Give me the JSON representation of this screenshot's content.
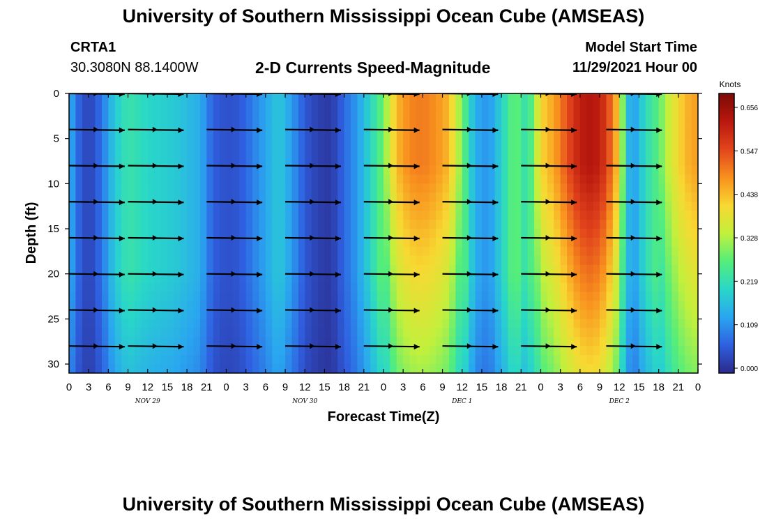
{
  "header": {
    "title": "University of Southern Mississippi Ocean Cube (AMSEAS)",
    "station": "CRTA1",
    "coordinates": "30.3080N  88.1400W",
    "subtitle": "2-D Currents Speed-Magnitude",
    "model_start_label": "Model Start Time",
    "model_start_value": "11/29/2021 Hour 00"
  },
  "footer": {
    "title": "University of Southern Mississippi Ocean Cube (AMSEAS)"
  },
  "chart_data": {
    "type": "heatmap",
    "title": "2-D Currents Speed-Magnitude",
    "xlabel": "Forecast Time(Z)",
    "ylabel": "Depth (ft)",
    "x_tick_labels": [
      "0",
      "3",
      "6",
      "9",
      "12",
      "15",
      "18",
      "21",
      "0",
      "3",
      "6",
      "9",
      "12",
      "15",
      "18",
      "21",
      "0",
      "3",
      "6",
      "9",
      "12",
      "15",
      "18",
      "21",
      "0",
      "3",
      "6",
      "9",
      "12",
      "15",
      "18",
      "21",
      "0"
    ],
    "x_range_hours": [
      0,
      96
    ],
    "date_labels": [
      {
        "label": "NOV 29",
        "hour": 12
      },
      {
        "label": "NOV 30",
        "hour": 36
      },
      {
        "label": "DEC 1",
        "hour": 60
      },
      {
        "label": "DEC 2",
        "hour": 84
      }
    ],
    "y_ticks": [
      0,
      5,
      10,
      15,
      20,
      25,
      30
    ],
    "y_range_ft": [
      0,
      31
    ],
    "colorbar": {
      "unit": "Knots",
      "ticks": [
        "0.656",
        "0.547",
        "0.438",
        "0.328",
        "0.219",
        "0.109",
        "0.000"
      ],
      "min": 0.0,
      "max": 0.7
    },
    "color_stops": [
      "#2b2a8a",
      "#2f5fe0",
      "#2aa6f0",
      "#29d7c8",
      "#55ee7a",
      "#c2f03c",
      "#f8d832",
      "#f8901e",
      "#e2451c",
      "#b8180e",
      "#7c0a06"
    ],
    "speed_profile_by_hour": [
      {
        "hour": 0,
        "speed": 0.17
      },
      {
        "hour": 1,
        "speed": 0.09
      },
      {
        "hour": 3,
        "speed": 0.03
      },
      {
        "hour": 5,
        "speed": 0.09
      },
      {
        "hour": 7,
        "speed": 0.19
      },
      {
        "hour": 9,
        "speed": 0.24
      },
      {
        "hour": 12,
        "speed": 0.21
      },
      {
        "hour": 16,
        "speed": 0.19
      },
      {
        "hour": 20,
        "speed": 0.15
      },
      {
        "hour": 22,
        "speed": 0.07
      },
      {
        "hour": 24,
        "speed": 0.05
      },
      {
        "hour": 26,
        "speed": 0.06
      },
      {
        "hour": 28,
        "speed": 0.1
      },
      {
        "hour": 30,
        "speed": 0.14
      },
      {
        "hour": 32,
        "speed": 0.19
      },
      {
        "hour": 34,
        "speed": 0.13
      },
      {
        "hour": 36,
        "speed": 0.06
      },
      {
        "hour": 38,
        "speed": 0.03
      },
      {
        "hour": 40,
        "speed": 0.02
      },
      {
        "hour": 42,
        "speed": 0.08
      },
      {
        "hour": 44,
        "speed": 0.13
      },
      {
        "hour": 46,
        "speed": 0.21
      },
      {
        "hour": 48,
        "speed": 0.3
      },
      {
        "hour": 50,
        "speed": 0.45
      },
      {
        "hour": 52,
        "speed": 0.5
      },
      {
        "hour": 54,
        "speed": 0.51
      },
      {
        "hour": 56,
        "speed": 0.49
      },
      {
        "hour": 58,
        "speed": 0.45
      },
      {
        "hour": 60,
        "speed": 0.3
      },
      {
        "hour": 62,
        "speed": 0.15
      },
      {
        "hour": 64,
        "speed": 0.12
      },
      {
        "hour": 66,
        "speed": 0.2
      },
      {
        "hour": 68,
        "speed": 0.3
      },
      {
        "hour": 70,
        "speed": 0.22
      },
      {
        "hour": 72,
        "speed": 0.42
      },
      {
        "hour": 74,
        "speed": 0.47
      },
      {
        "hour": 76,
        "speed": 0.55
      },
      {
        "hour": 78,
        "speed": 0.62
      },
      {
        "hour": 80,
        "speed": 0.64
      },
      {
        "hour": 82,
        "speed": 0.58
      },
      {
        "hour": 84,
        "speed": 0.42
      },
      {
        "hour": 85,
        "speed": 0.2
      },
      {
        "hour": 86,
        "speed": 0.12
      },
      {
        "hour": 88,
        "speed": 0.22
      },
      {
        "hour": 90,
        "speed": 0.28
      },
      {
        "hour": 92,
        "speed": 0.38
      },
      {
        "hour": 94,
        "speed": 0.45
      },
      {
        "hour": 96,
        "speed": 0.48
      }
    ],
    "arrow_depths_ft": [
      0,
      4,
      8,
      12,
      16,
      20,
      24,
      28
    ],
    "arrow_row_starts_hours": [
      0,
      9,
      21,
      33,
      45,
      57,
      69,
      82
    ]
  }
}
